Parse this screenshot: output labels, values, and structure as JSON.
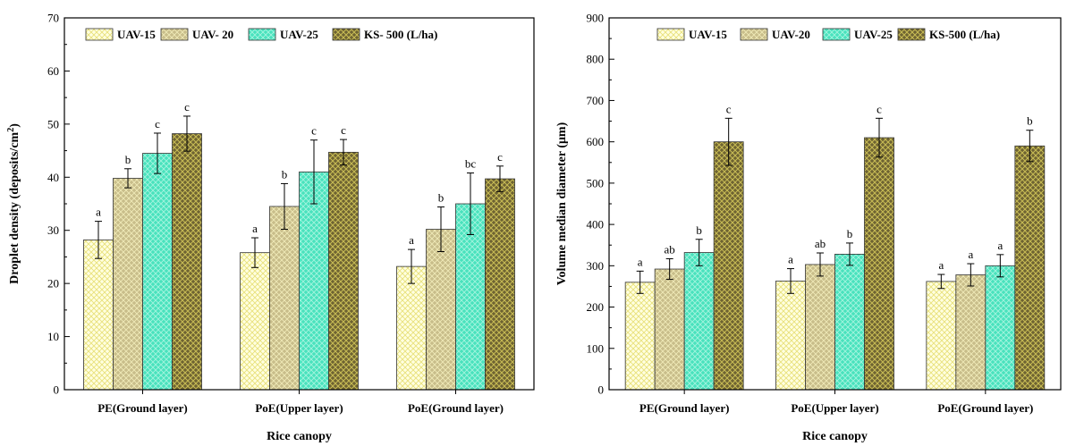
{
  "chart_data": [
    {
      "type": "bar",
      "xlabel": "Rice canopy",
      "ylabel": "Droplet density (deposits/cm",
      "ylabel_sup": "2",
      "ylabel_end": ")",
      "ylim": [
        0,
        70
      ],
      "yticks": [
        0,
        10,
        20,
        30,
        40,
        50,
        60,
        70
      ],
      "categories": [
        "PE(Ground layer)",
        "PoE(Upper layer)",
        "PoE(Ground layer)"
      ],
      "legend_position": "top",
      "series": [
        {
          "name": "UAV-15",
          "values": [
            28.2,
            25.8,
            23.2
          ],
          "errors": [
            3.5,
            2.8,
            3.2
          ],
          "letters": [
            "a",
            "a",
            "a"
          ]
        },
        {
          "name": "UAV- 20",
          "values": [
            39.8,
            34.5,
            30.2
          ],
          "errors": [
            1.8,
            4.3,
            4.2
          ],
          "letters": [
            "b",
            "b",
            "b"
          ]
        },
        {
          "name": "UAV-25",
          "values": [
            44.5,
            41.0,
            35.0
          ],
          "errors": [
            3.8,
            6.0,
            5.8
          ],
          "letters": [
            "c",
            "c",
            "bc"
          ]
        },
        {
          "name": "KS- 500 (L/ha)",
          "values": [
            48.2,
            44.7,
            39.7
          ],
          "errors": [
            3.3,
            2.4,
            2.4
          ],
          "letters": [
            "c",
            "c",
            "c"
          ]
        }
      ]
    },
    {
      "type": "bar",
      "xlabel": "Rice canopy",
      "ylabel": "Volume median diameter (μm)",
      "ylim": [
        0,
        900
      ],
      "yticks": [
        0,
        100,
        200,
        300,
        400,
        500,
        600,
        700,
        800,
        900
      ],
      "categories": [
        "PE(Ground layer)",
        "PoE(Upper layer)",
        "PoE(Ground layer)"
      ],
      "legend_position": "top",
      "series": [
        {
          "name": "UAV-15",
          "values": [
            260,
            263,
            262
          ],
          "errors": [
            27,
            30,
            17
          ],
          "letters": [
            "a",
            "a",
            "a"
          ]
        },
        {
          "name": "UAV-20",
          "values": [
            292,
            303,
            278
          ],
          "errors": [
            25,
            28,
            27
          ],
          "letters": [
            "ab",
            "ab",
            "a"
          ]
        },
        {
          "name": "UAV-25",
          "values": [
            332,
            328,
            300
          ],
          "errors": [
            32,
            27,
            27
          ],
          "letters": [
            "b",
            "b",
            "a"
          ]
        },
        {
          "name": "KS-500 (L/ha)",
          "values": [
            600,
            610,
            590
          ],
          "errors": [
            57,
            47,
            38
          ],
          "letters": [
            "c",
            "c",
            "b"
          ]
        }
      ]
    }
  ]
}
